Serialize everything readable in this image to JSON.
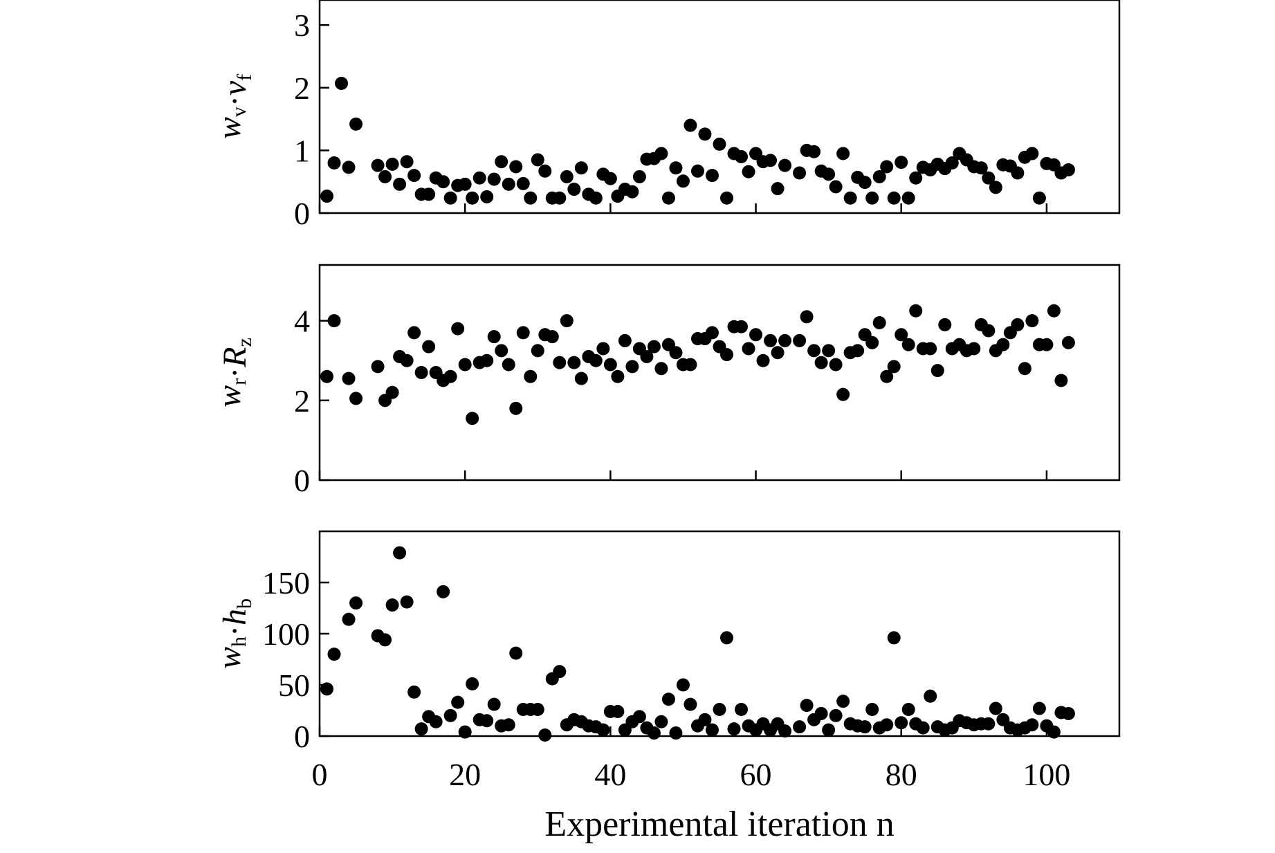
{
  "chart_data": [
    {
      "type": "scatter",
      "ylabel": {
        "w": "w",
        "w_sub": "v",
        "dot": "·",
        "q": "v",
        "q_sub": "f"
      },
      "ylim": [
        0,
        3.4
      ],
      "yticks": [
        0,
        1,
        2,
        3
      ],
      "series": [
        {
          "x": [
            1,
            2,
            3,
            4,
            5,
            8,
            9,
            10,
            11,
            12,
            13,
            14,
            15,
            16,
            17,
            18,
            19,
            20,
            21,
            22,
            23,
            24,
            25,
            26,
            27,
            28,
            29,
            30,
            31,
            32,
            33,
            34,
            35,
            36,
            37,
            38,
            39,
            40,
            41,
            42,
            43,
            44,
            45,
            46,
            47,
            48,
            49,
            50,
            51,
            52,
            53,
            54,
            55,
            56,
            57,
            58,
            59,
            60,
            61,
            62,
            63,
            64,
            66,
            67,
            68,
            69,
            70,
            71,
            72,
            73,
            74,
            75,
            76,
            77,
            78,
            79,
            80,
            81,
            82,
            83,
            84,
            85,
            86,
            87,
            88,
            89,
            90,
            91,
            92,
            93,
            94,
            95,
            96,
            97,
            98,
            99,
            100,
            101,
            102,
            103
          ],
          "y": [
            0.27,
            0.8,
            2.07,
            0.73,
            1.42,
            0.76,
            0.58,
            0.78,
            0.46,
            0.82,
            0.6,
            0.3,
            0.3,
            0.56,
            0.5,
            0.24,
            0.44,
            0.46,
            0.24,
            0.56,
            0.26,
            0.54,
            0.82,
            0.46,
            0.74,
            0.47,
            0.24,
            0.85,
            0.67,
            0.24,
            0.24,
            0.58,
            0.38,
            0.72,
            0.3,
            0.24,
            0.62,
            0.55,
            0.27,
            0.38,
            0.34,
            0.58,
            0.86,
            0.87,
            0.95,
            0.24,
            0.72,
            0.51,
            1.4,
            0.67,
            1.26,
            0.6,
            1.1,
            0.24,
            0.95,
            0.9,
            0.66,
            0.95,
            0.82,
            0.84,
            0.39,
            0.76,
            0.64,
            1.0,
            0.98,
            0.67,
            0.62,
            0.42,
            0.95,
            0.24,
            0.57,
            0.49,
            0.24,
            0.58,
            0.74,
            0.24,
            0.81,
            0.24,
            0.56,
            0.73,
            0.69,
            0.78,
            0.71,
            0.8,
            0.95,
            0.85,
            0.74,
            0.72,
            0.56,
            0.41,
            0.77,
            0.75,
            0.64,
            0.89,
            0.95,
            0.24,
            0.79,
            0.77,
            0.64,
            0.69
          ]
        }
      ]
    },
    {
      "type": "scatter",
      "ylabel": {
        "w": "w",
        "w_sub": "r",
        "dot": "·",
        "q": "R",
        "q_sub": "z"
      },
      "ylim": [
        0,
        5.4
      ],
      "yticks": [
        0,
        2,
        4
      ],
      "series": [
        {
          "x": [
            1,
            2,
            4,
            5,
            8,
            9,
            10,
            11,
            12,
            13,
            14,
            15,
            16,
            17,
            18,
            19,
            20,
            21,
            22,
            23,
            24,
            25,
            26,
            27,
            28,
            29,
            30,
            31,
            32,
            33,
            34,
            35,
            36,
            37,
            38,
            39,
            40,
            41,
            42,
            43,
            44,
            45,
            46,
            47,
            48,
            49,
            50,
            51,
            52,
            53,
            54,
            55,
            56,
            57,
            58,
            59,
            60,
            61,
            62,
            63,
            64,
            66,
            67,
            68,
            69,
            70,
            71,
            72,
            73,
            74,
            75,
            76,
            77,
            78,
            79,
            80,
            81,
            82,
            83,
            84,
            85,
            86,
            87,
            88,
            89,
            90,
            91,
            92,
            93,
            94,
            95,
            96,
            97,
            98,
            99,
            100,
            101,
            102,
            103
          ],
          "y": [
            2.6,
            4.0,
            2.55,
            2.05,
            2.85,
            2.0,
            2.2,
            3.1,
            3.0,
            3.7,
            2.7,
            3.35,
            2.7,
            2.5,
            2.6,
            3.8,
            2.9,
            1.55,
            2.95,
            3.0,
            3.6,
            3.25,
            2.9,
            1.8,
            3.7,
            2.6,
            3.25,
            3.65,
            3.6,
            2.95,
            4.0,
            2.95,
            2.55,
            3.1,
            3.0,
            3.3,
            2.9,
            2.6,
            3.5,
            2.85,
            3.3,
            3.1,
            3.35,
            2.8,
            3.4,
            3.2,
            2.9,
            2.9,
            3.55,
            3.55,
            3.7,
            3.35,
            3.15,
            3.85,
            3.85,
            3.3,
            3.65,
            3.0,
            3.5,
            3.2,
            3.5,
            3.5,
            4.1,
            3.25,
            2.95,
            3.25,
            2.9,
            2.15,
            3.2,
            3.25,
            3.65,
            3.45,
            3.95,
            2.6,
            2.85,
            3.65,
            3.4,
            4.25,
            3.3,
            3.3,
            2.75,
            3.9,
            3.3,
            3.4,
            3.25,
            3.3,
            3.9,
            3.75,
            3.25,
            3.4,
            3.7,
            3.9,
            2.8,
            4.0,
            3.4,
            3.4,
            4.25,
            2.5,
            3.45
          ]
        }
      ]
    },
    {
      "type": "scatter",
      "ylabel": {
        "w": "w",
        "w_sub": "h",
        "dot": "·",
        "q": "h",
        "q_sub": "b"
      },
      "ylim": [
        0,
        200
      ],
      "yticks": [
        0,
        50,
        100,
        150
      ],
      "series": [
        {
          "x": [
            1,
            2,
            4,
            5,
            8,
            9,
            10,
            11,
            12,
            13,
            14,
            15,
            16,
            17,
            18,
            19,
            20,
            21,
            22,
            23,
            24,
            25,
            26,
            27,
            28,
            29,
            30,
            31,
            32,
            33,
            34,
            35,
            36,
            37,
            38,
            39,
            40,
            41,
            42,
            43,
            44,
            45,
            46,
            47,
            48,
            49,
            50,
            51,
            52,
            53,
            54,
            55,
            56,
            57,
            58,
            59,
            60,
            61,
            62,
            63,
            64,
            66,
            67,
            68,
            69,
            70,
            71,
            72,
            73,
            74,
            75,
            76,
            77,
            78,
            79,
            80,
            81,
            82,
            83,
            84,
            85,
            86,
            87,
            88,
            89,
            90,
            91,
            92,
            93,
            94,
            95,
            96,
            97,
            98,
            99,
            100,
            101,
            102,
            103
          ],
          "y": [
            46,
            80,
            114,
            130,
            98,
            94,
            128,
            179,
            131,
            43,
            7,
            19,
            14,
            141,
            20,
            33,
            4,
            51,
            16,
            15,
            31,
            10,
            11,
            81,
            26,
            26,
            26,
            1,
            56,
            63,
            11,
            16,
            14,
            10,
            9,
            6,
            24,
            24,
            6,
            14,
            19,
            8,
            3,
            14,
            36,
            3,
            50,
            31,
            10,
            16,
            6,
            26,
            96,
            7,
            26,
            10,
            6,
            12,
            6,
            12,
            5,
            9,
            30,
            16,
            22,
            6,
            20,
            34,
            12,
            10,
            9,
            26,
            8,
            11,
            96,
            13,
            26,
            12,
            8,
            39,
            9,
            6,
            8,
            15,
            13,
            11,
            12,
            12,
            27,
            16,
            8,
            6,
            8,
            11,
            27,
            10,
            4,
            23,
            22
          ]
        }
      ]
    }
  ],
  "xaxis": {
    "label": "Experimental iteration n",
    "xlim": [
      0,
      110
    ],
    "ticks": [
      0,
      20,
      40,
      60,
      80,
      100
    ],
    "ticklabels": [
      "0",
      "20",
      "40",
      "60",
      "80",
      "100"
    ]
  }
}
